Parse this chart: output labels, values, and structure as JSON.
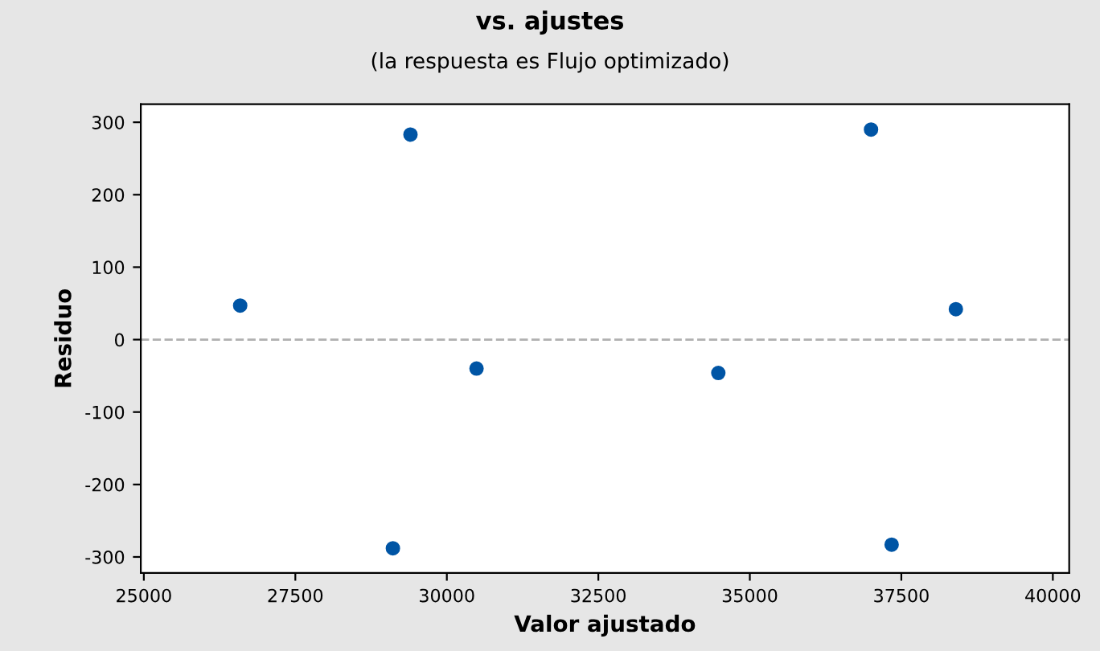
{
  "chart_data": {
    "type": "scatter",
    "title": "vs. ajustes",
    "subtitle": "(la respuesta es Flujo optimizado)",
    "xlabel": "Valor ajustado",
    "ylabel": "Residuo",
    "x": [
      26590,
      29110,
      29400,
      30490,
      34480,
      37000,
      37340,
      38400
    ],
    "values": [
      47,
      -288,
      283,
      -40,
      -46,
      290,
      -283,
      42
    ],
    "color": "#0055a5",
    "marker": "circle",
    "xlim": [
      24950,
      40270
    ],
    "ylim": [
      -322,
      325
    ],
    "xticks": [
      25000,
      27500,
      30000,
      32500,
      35000,
      37500,
      40000
    ],
    "yticks": [
      -300,
      -200,
      -100,
      0,
      100,
      200,
      300
    ],
    "ref_lines": [
      {
        "axis": "y",
        "value": 0,
        "color": "#b0b0b0",
        "line_style": "dashed"
      }
    ],
    "grid": false,
    "legend": false
  }
}
